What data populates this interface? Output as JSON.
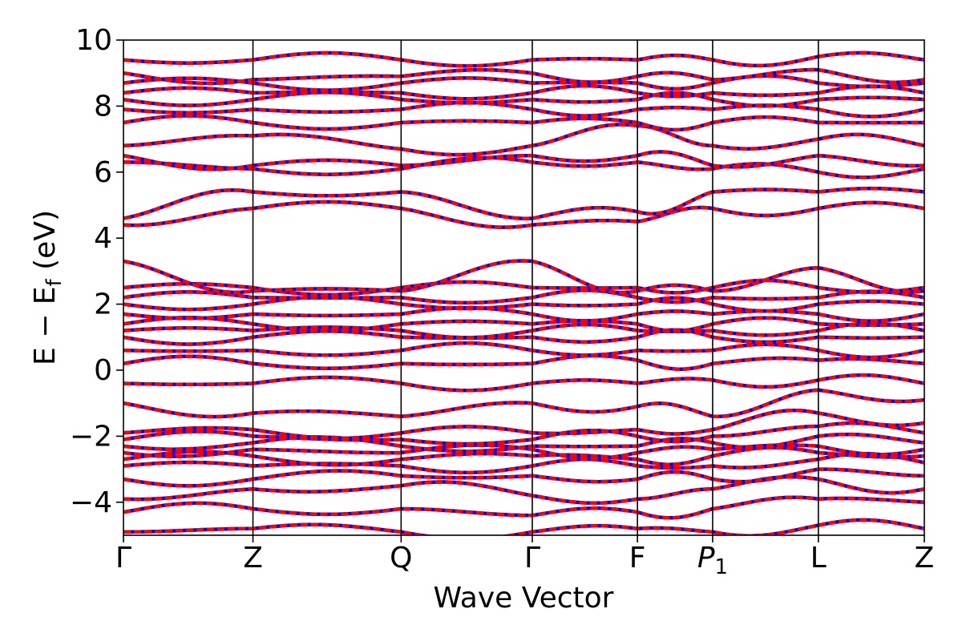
{
  "chart_data": {
    "type": "line",
    "title": "",
    "xlabel": "Wave Vector",
    "ylabel": "E − E_f (eV)",
    "ylim": [
      -5,
      10
    ],
    "yticks": [
      -4,
      -2,
      0,
      2,
      4,
      6,
      8,
      10
    ],
    "ytick_labels": [
      "−4",
      "−2",
      "0",
      "2",
      "4",
      "6",
      "8",
      "10"
    ],
    "xlim": [
      0,
      1
    ],
    "kpoints": [
      {
        "label": "Γ",
        "pos": 0.0
      },
      {
        "label": "Z",
        "pos": 0.1617
      },
      {
        "label": "Q",
        "pos": 0.3467
      },
      {
        "label": "Γ",
        "pos": 0.5105
      },
      {
        "label": "F",
        "pos": 0.6418
      },
      {
        "label": "P",
        "sub": "1",
        "pos": 0.7357
      },
      {
        "label": "L",
        "pos": 0.8677
      },
      {
        "label": "Z",
        "pos": 1.0
      }
    ],
    "grid": false,
    "legend": "none",
    "series": [
      {
        "color": "#0000ff",
        "style": "solid",
        "energies_at_kpoints": [
          [
            -4.9,
            -4.8,
            -4.9,
            -4.9,
            -4.8,
            -4.9,
            -4.7,
            -4.8
          ],
          [
            -4.3,
            -4.2,
            -4.2,
            -4.4,
            -4.3,
            -4.2,
            -3.9,
            -4.0
          ],
          [
            -3.9,
            -3.6,
            -3.5,
            -3.8,
            -3.9,
            -3.6,
            -3.3,
            -3.6
          ],
          [
            -3.3,
            -3.3,
            -3.2,
            -3.2,
            -3.3,
            -3.3,
            -3.0,
            -3.2
          ],
          [
            -2.9,
            -2.9,
            -2.9,
            -2.9,
            -2.9,
            -2.9,
            -2.7,
            -2.8
          ],
          [
            -2.7,
            -2.6,
            -2.7,
            -2.6,
            -2.7,
            -2.6,
            -2.5,
            -2.6
          ],
          [
            -2.5,
            -2.4,
            -2.5,
            -2.4,
            -2.5,
            -2.4,
            -2.3,
            -2.4
          ],
          [
            -2.3,
            -2.2,
            -2.3,
            -2.3,
            -2.3,
            -2.2,
            -2.0,
            -2.2
          ],
          [
            -2.1,
            -2.0,
            -2.1,
            -2.1,
            -2.0,
            -2.0,
            -1.7,
            -1.9
          ],
          [
            -1.9,
            -1.8,
            -1.9,
            -1.9,
            -1.8,
            -1.8,
            -1.3,
            -1.6
          ],
          [
            -1.0,
            -1.3,
            -1.4,
            -1.0,
            -1.1,
            -1.4,
            -0.6,
            -0.9
          ],
          [
            -0.4,
            -0.4,
            -0.4,
            -0.4,
            -0.4,
            -0.3,
            -0.3,
            -0.4
          ],
          [
            0.2,
            0.2,
            0.2,
            0.2,
            0.3,
            0.2,
            0.3,
            0.2
          ],
          [
            0.6,
            0.6,
            0.6,
            0.6,
            0.6,
            0.6,
            0.6,
            0.6
          ],
          [
            1.0,
            1.0,
            1.0,
            1.0,
            1.0,
            1.0,
            1.0,
            1.0
          ],
          [
            1.2,
            1.2,
            1.2,
            1.2,
            1.2,
            1.2,
            1.2,
            1.2
          ],
          [
            1.4,
            1.4,
            1.4,
            1.4,
            1.4,
            1.4,
            1.4,
            1.4
          ],
          [
            1.7,
            1.7,
            1.7,
            1.7,
            1.7,
            1.7,
            1.7,
            1.7
          ],
          [
            2.0,
            2.0,
            2.0,
            2.0,
            2.0,
            2.0,
            2.0,
            2.0
          ],
          [
            2.2,
            2.2,
            2.2,
            2.2,
            2.2,
            2.2,
            2.2,
            2.2
          ],
          [
            2.5,
            2.5,
            2.5,
            2.5,
            2.5,
            2.5,
            2.5,
            2.5
          ],
          [
            3.3,
            2.4,
            2.4,
            3.3,
            2.4,
            2.4,
            3.1,
            2.4
          ],
          [
            4.4,
            4.9,
            4.9,
            4.4,
            4.5,
            4.9,
            4.9,
            4.9
          ],
          [
            4.6,
            5.4,
            5.4,
            4.6,
            4.8,
            5.4,
            5.4,
            5.4
          ],
          [
            6.3,
            6.1,
            6.1,
            6.3,
            6.3,
            6.1,
            6.0,
            6.1
          ],
          [
            6.5,
            6.2,
            6.2,
            6.5,
            6.5,
            6.2,
            6.5,
            6.2
          ],
          [
            6.8,
            7.1,
            6.7,
            6.8,
            7.4,
            6.8,
            7.0,
            6.8
          ],
          [
            7.5,
            7.5,
            7.5,
            7.5,
            7.5,
            7.5,
            7.5,
            7.5
          ],
          [
            7.9,
            7.9,
            7.9,
            7.9,
            7.9,
            7.9,
            7.9,
            7.9
          ],
          [
            8.2,
            8.2,
            8.2,
            8.2,
            8.2,
            8.2,
            8.2,
            8.2
          ],
          [
            8.4,
            8.4,
            8.4,
            8.4,
            8.4,
            8.4,
            8.4,
            8.4
          ],
          [
            8.7,
            8.7,
            8.7,
            8.7,
            8.7,
            8.7,
            8.7,
            8.7
          ],
          [
            9.0,
            8.8,
            8.9,
            9.0,
            8.9,
            8.8,
            9.1,
            8.8
          ],
          [
            9.4,
            9.4,
            9.4,
            9.4,
            9.4,
            9.4,
            9.5,
            9.4
          ]
        ]
      },
      {
        "color": "#ff0000",
        "style": "dashed",
        "same_as_previous": true
      }
    ]
  }
}
